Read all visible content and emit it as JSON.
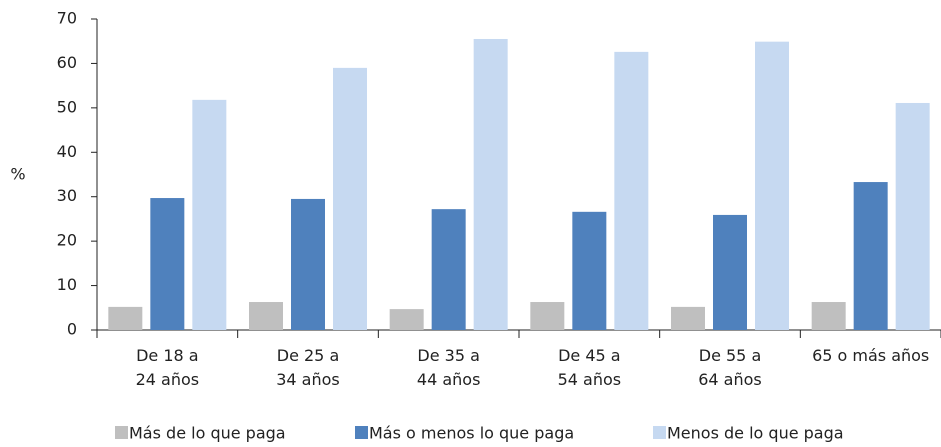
{
  "chart_data": {
    "type": "bar",
    "y_label": "%",
    "categories": [
      [
        "De 18 a",
        "24 años"
      ],
      [
        "De 25 a",
        "34 años"
      ],
      [
        "De 35 a",
        "44 años"
      ],
      [
        "De 45 a",
        "54 años"
      ],
      [
        "De 55 a",
        "64 años"
      ],
      [
        "65 o más años"
      ]
    ],
    "series": [
      {
        "name": "Más de lo que paga",
        "color": "#bfbfbf",
        "values": [
          5.2,
          6.3,
          4.7,
          6.3,
          5.2,
          6.3
        ]
      },
      {
        "name": "Más o menos lo que paga",
        "color": "#4f81bd",
        "values": [
          29.7,
          29.5,
          27.2,
          26.6,
          25.9,
          33.3
        ]
      },
      {
        "name": "Menos de lo que paga",
        "color": "#c6d9f1",
        "values": [
          51.8,
          59.0,
          65.5,
          62.6,
          64.9,
          51.1
        ]
      }
    ],
    "ylim": [
      0,
      70
    ],
    "yticks": [
      0,
      10,
      20,
      30,
      40,
      50,
      60,
      70
    ],
    "grid": false,
    "legend": "bottom"
  }
}
